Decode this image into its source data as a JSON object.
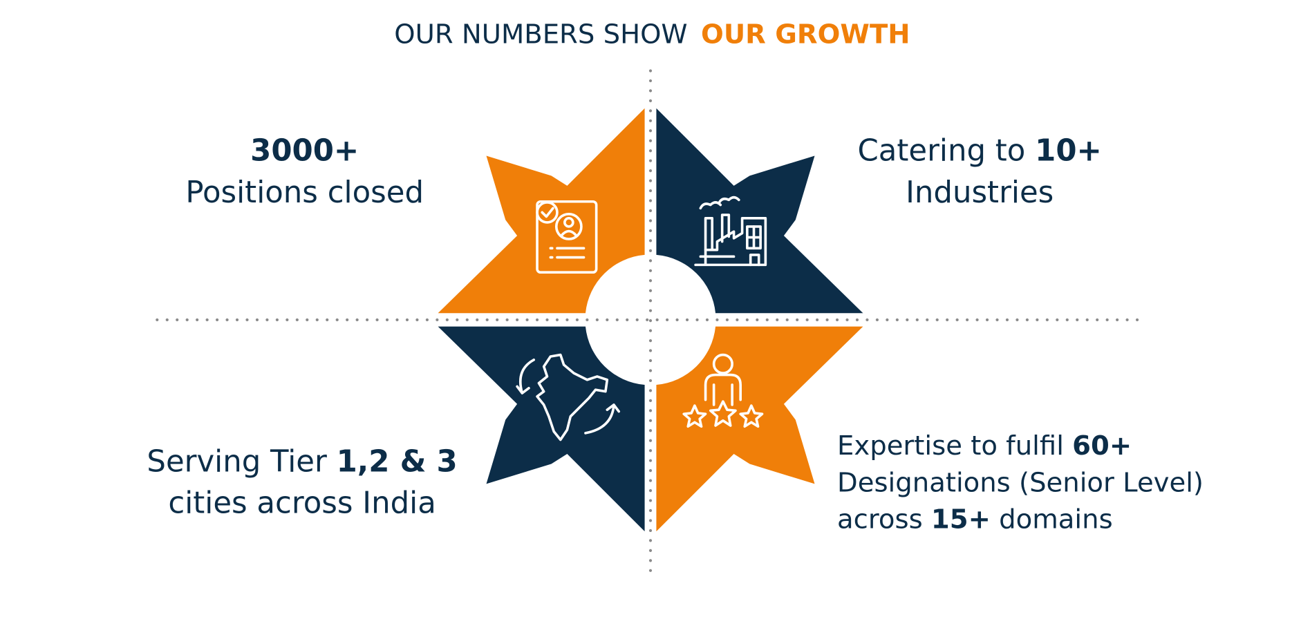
{
  "title": {
    "lead": "OUR NUMBERS SHOW",
    "highlight": "OUR GROWTH"
  },
  "stats": [
    {
      "lines": [
        [
          {
            "text": "3000+",
            "bold": true
          }
        ],
        [
          {
            "text": "Positions closed",
            "bold": false
          }
        ]
      ]
    },
    {
      "lines": [
        [
          {
            "text": "Catering to ",
            "bold": false
          },
          {
            "text": "10+",
            "bold": true
          }
        ],
        [
          {
            "text": "Industries",
            "bold": false
          }
        ]
      ]
    },
    {
      "lines": [
        [
          {
            "text": "Serving Tier ",
            "bold": false
          },
          {
            "text": "1,2 & 3",
            "bold": true
          }
        ],
        [
          {
            "text": "cities across India",
            "bold": false
          }
        ]
      ]
    },
    {
      "lines": [
        [
          {
            "text": "Expertise to fulfil ",
            "bold": false
          },
          {
            "text": "60+",
            "bold": true
          }
        ],
        [
          {
            "text": "Designations (Senior Level)",
            "bold": false
          }
        ],
        [
          {
            "text": "across ",
            "bold": false
          },
          {
            "text": "15+",
            "bold": true
          },
          {
            "text": " domains",
            "bold": false
          }
        ]
      ]
    }
  ]
}
